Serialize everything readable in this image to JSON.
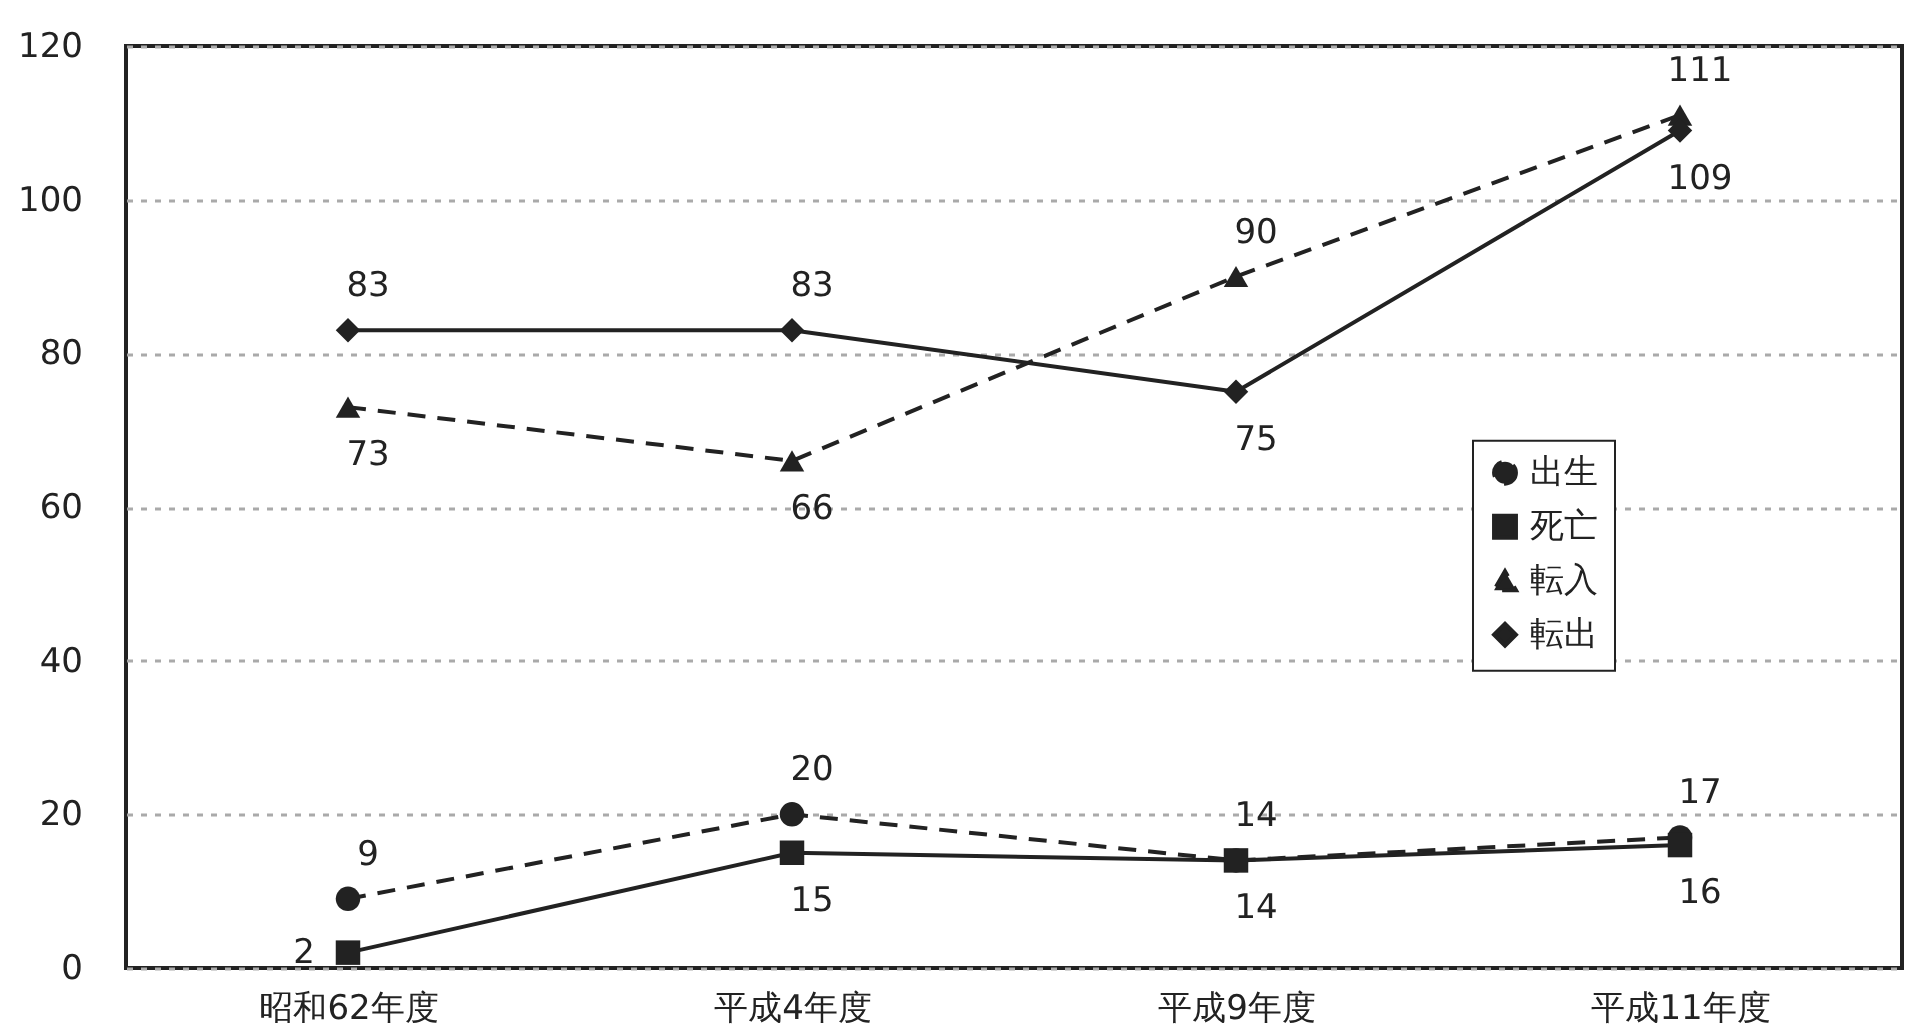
{
  "chart_data": {
    "type": "line",
    "categories": [
      "昭和62年度",
      "平成4年度",
      "平成9年度",
      "平成11年度"
    ],
    "series": [
      {
        "name": "出生",
        "color": "#222222",
        "marker": "circle",
        "line_style": "dashed",
        "values": [
          9,
          20,
          14,
          17
        ]
      },
      {
        "name": "死亡",
        "color": "#222222",
        "marker": "square",
        "line_style": "solid",
        "values": [
          2,
          15,
          14,
          16
        ]
      },
      {
        "name": "転入",
        "color": "#222222",
        "marker": "triangle",
        "line_style": "dashed",
        "values": [
          73,
          66,
          90,
          111
        ]
      },
      {
        "name": "転出",
        "color": "#222222",
        "marker": "diamond",
        "line_style": "solid",
        "values": [
          83,
          83,
          75,
          109
        ]
      }
    ],
    "ylim": [
      0,
      120
    ],
    "yticks": [
      0,
      20,
      40,
      60,
      80,
      100,
      120
    ],
    "grid": "y",
    "legend": "right",
    "data_labels": true
  }
}
